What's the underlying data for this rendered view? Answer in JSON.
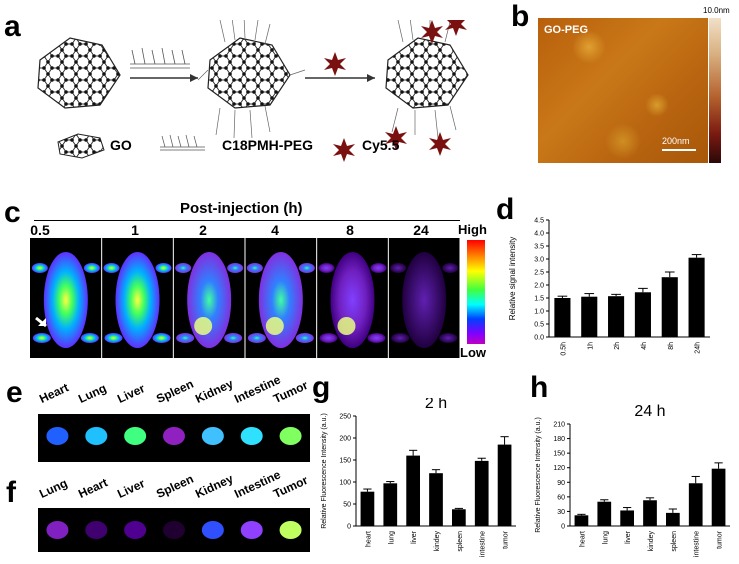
{
  "panel_a": {
    "letter": "a",
    "legend": {
      "go": "GO",
      "polymer": "C18PMH-PEG",
      "dye": "Cy5.5"
    }
  },
  "panel_b": {
    "letter": "b",
    "image_label": "GO-PEG",
    "scale_top": "10.0nm",
    "scale_bar": "200nm",
    "colors": {
      "afm_dark": "#b05a08",
      "afm_light": "#e8b040"
    }
  },
  "panel_c": {
    "letter": "c",
    "header": "Post-injection (h)",
    "times": [
      "0.5",
      "1",
      "2",
      "4",
      "8",
      "24"
    ],
    "colorbar_high": "High",
    "colorbar_low": "Low"
  },
  "panel_d": {
    "letter": "d"
  },
  "panel_e": {
    "letter": "e",
    "organs": [
      "Heart",
      "Lung",
      "Liver",
      "Spleen",
      "Kidney",
      "Intestine",
      "Tumor"
    ]
  },
  "panel_f": {
    "letter": "f",
    "organs": [
      "Lung",
      "Heart",
      "Liver",
      "Spleen",
      "Kidney",
      "Intestine",
      "Tumor"
    ]
  },
  "panel_g": {
    "letter": "g"
  },
  "panel_h": {
    "letter": "h"
  },
  "chart_data": [
    {
      "id": "d",
      "type": "bar",
      "categories": [
        "0.5h",
        "1h",
        "2h",
        "4h",
        "8h",
        "24h"
      ],
      "values": [
        1.5,
        1.55,
        1.57,
        1.72,
        2.3,
        3.05
      ],
      "errors": [
        0.07,
        0.12,
        0.07,
        0.15,
        0.2,
        0.12
      ],
      "title": "",
      "xlabel": "",
      "ylabel": "Relative signal intensity",
      "ylim": [
        0.0,
        4.5
      ],
      "yticks": [
        "0.0",
        "0.5",
        "1.0",
        "1.5",
        "2.0",
        "2.5",
        "3.0",
        "3.5",
        "4.0",
        "4.5"
      ]
    },
    {
      "id": "g",
      "type": "bar",
      "categories": [
        "heart",
        "lung",
        "liver",
        "kindey",
        "spleen",
        "intestine",
        "tumor"
      ],
      "values": [
        78,
        97,
        160,
        120,
        38,
        148,
        185
      ],
      "errors": [
        6,
        4,
        12,
        8,
        2,
        6,
        18
      ],
      "title": "2 h",
      "xlabel": "",
      "ylabel": "Relative Fluorescence Intensity (a.u.)",
      "ylim": [
        0,
        250
      ],
      "yticks": [
        "0",
        "50",
        "100",
        "150",
        "200",
        "250"
      ]
    },
    {
      "id": "h",
      "type": "bar",
      "categories": [
        "heart",
        "lung",
        "liver",
        "kindey",
        "spleen",
        "intestine",
        "tumor"
      ],
      "values": [
        22,
        50,
        32,
        53,
        27,
        88,
        118
      ],
      "errors": [
        2,
        4,
        6,
        5,
        8,
        14,
        12
      ],
      "title": "24 h",
      "xlabel": "",
      "ylabel": "Relative Fluorescence Intensity (a.u.)",
      "ylim": [
        0,
        210
      ],
      "yticks": [
        "0",
        "30",
        "60",
        "90",
        "120",
        "150",
        "180",
        "210"
      ]
    }
  ]
}
